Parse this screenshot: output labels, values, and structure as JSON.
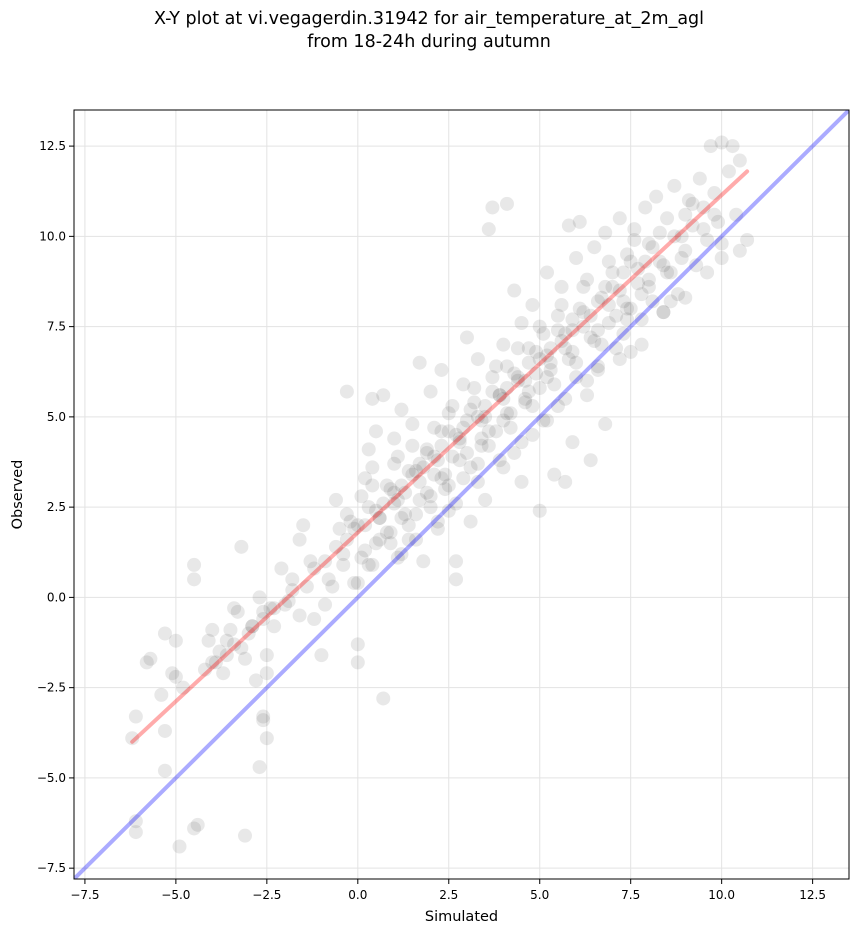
{
  "title_line1": "X-Y plot at vi.vegagerdin.31942 for air_temperature_at_2m_agl",
  "title_line2": "from 18-24h during autumn",
  "chart_data": {
    "type": "scatter",
    "xlabel": "Simulated",
    "ylabel": "Observed",
    "xlim": [
      -7.8,
      13.5
    ],
    "ylim": [
      -7.8,
      13.5
    ],
    "xticks": [
      -7.5,
      -5.0,
      -2.5,
      0.0,
      2.5,
      5.0,
      7.5,
      10.0,
      12.5
    ],
    "yticks": [
      -7.5,
      -5.0,
      -2.5,
      0.0,
      2.5,
      5.0,
      7.5,
      10.0,
      12.5
    ],
    "xtick_labels": [
      "−7.5",
      "−5.0",
      "−2.5",
      "0.0",
      "2.5",
      "5.0",
      "7.5",
      "10.0",
      "12.5"
    ],
    "ytick_labels": [
      "−7.5",
      "−5.0",
      "−2.5",
      "0.0",
      "2.5",
      "5.0",
      "7.5",
      "10.0",
      "12.5"
    ],
    "grid": true,
    "point_color": "#000000",
    "point_alpha": 0.09,
    "identity_line": {
      "x": [
        -7.8,
        13.5
      ],
      "y": [
        -7.8,
        13.5
      ],
      "color": "#0000ff"
    },
    "fit_line": {
      "x": [
        -6.2,
        10.7
      ],
      "y": [
        -4.0,
        11.8
      ],
      "color": "#ff0000"
    },
    "points": [
      [
        -6.1,
        -6.2
      ],
      [
        -6.1,
        -6.5
      ],
      [
        -6.1,
        -3.3
      ],
      [
        -6.2,
        -3.9
      ],
      [
        -5.8,
        -1.8
      ],
      [
        -5.7,
        -1.7
      ],
      [
        -5.4,
        -2.7
      ],
      [
        -5.3,
        -1.0
      ],
      [
        -5.3,
        -3.7
      ],
      [
        -5.3,
        -4.8
      ],
      [
        -5.1,
        -2.1
      ],
      [
        -5.0,
        -2.2
      ],
      [
        -5.0,
        -1.2
      ],
      [
        -4.9,
        -6.9
      ],
      [
        -4.5,
        -6.4
      ],
      [
        -4.4,
        -6.3
      ],
      [
        -4.5,
        0.9
      ],
      [
        -4.5,
        0.5
      ],
      [
        -4.0,
        -0.9
      ],
      [
        -4.1,
        -1.2
      ],
      [
        -3.9,
        -1.8
      ],
      [
        -3.8,
        -1.5
      ],
      [
        -3.7,
        -2.1
      ],
      [
        -3.6,
        -1.2
      ],
      [
        -3.5,
        -0.9
      ],
      [
        -3.4,
        -0.3
      ],
      [
        -3.3,
        -0.4
      ],
      [
        -3.2,
        -1.4
      ],
      [
        -3.1,
        -1.7
      ],
      [
        -3.2,
        1.4
      ],
      [
        -3.1,
        -6.6
      ],
      [
        -2.9,
        -0.8
      ],
      [
        -2.8,
        -2.3
      ],
      [
        -2.7,
        -4.7
      ],
      [
        -2.6,
        -3.3
      ],
      [
        -2.6,
        -3.4
      ],
      [
        -2.5,
        -3.9
      ],
      [
        -2.5,
        -1.6
      ],
      [
        -2.5,
        -2.1
      ],
      [
        -2.6,
        -0.4
      ],
      [
        -2.4,
        -0.3
      ],
      [
        -2.3,
        -0.8
      ],
      [
        -2.7,
        0.0
      ],
      [
        -2.1,
        0.8
      ],
      [
        -1.9,
        -0.1
      ],
      [
        -1.8,
        0.5
      ],
      [
        -1.6,
        1.6
      ],
      [
        -1.5,
        2.0
      ],
      [
        -1.3,
        1.0
      ],
      [
        -1.2,
        -0.6
      ],
      [
        -1.0,
        -1.6
      ],
      [
        -0.9,
        -0.2
      ],
      [
        -0.7,
        0.3
      ],
      [
        -0.5,
        1.9
      ],
      [
        -0.4,
        0.9
      ],
      [
        -0.3,
        2.3
      ],
      [
        -0.3,
        5.7
      ],
      [
        -0.1,
        0.4
      ],
      [
        0.0,
        -1.3
      ],
      [
        0.0,
        -1.8
      ],
      [
        0.0,
        2.0
      ],
      [
        0.1,
        2.8
      ],
      [
        0.2,
        3.3
      ],
      [
        0.3,
        4.1
      ],
      [
        0.4,
        5.5
      ],
      [
        0.4,
        3.6
      ],
      [
        0.5,
        1.5
      ],
      [
        0.5,
        4.6
      ],
      [
        0.6,
        2.2
      ],
      [
        0.7,
        -2.8
      ],
      [
        0.7,
        5.6
      ],
      [
        0.8,
        3.1
      ],
      [
        0.9,
        1.8
      ],
      [
        1.0,
        4.4
      ],
      [
        1.0,
        2.6
      ],
      [
        1.1,
        3.9
      ],
      [
        1.2,
        1.2
      ],
      [
        1.2,
        5.2
      ],
      [
        1.3,
        2.9
      ],
      [
        1.4,
        1.6
      ],
      [
        1.5,
        3.4
      ],
      [
        1.5,
        4.8
      ],
      [
        1.6,
        2.3
      ],
      [
        1.7,
        6.5
      ],
      [
        1.7,
        3.7
      ],
      [
        1.8,
        1.0
      ],
      [
        1.9,
        4.1
      ],
      [
        2.0,
        2.8
      ],
      [
        2.0,
        5.7
      ],
      [
        2.1,
        3.4
      ],
      [
        2.2,
        1.9
      ],
      [
        2.3,
        4.6
      ],
      [
        2.3,
        6.3
      ],
      [
        2.4,
        3.0
      ],
      [
        2.5,
        5.1
      ],
      [
        2.5,
        2.4
      ],
      [
        2.6,
        3.9
      ],
      [
        2.7,
        0.5
      ],
      [
        2.7,
        1.0
      ],
      [
        2.8,
        4.4
      ],
      [
        2.9,
        5.9
      ],
      [
        2.9,
        3.3
      ],
      [
        3.0,
        7.2
      ],
      [
        3.0,
        4.9
      ],
      [
        3.1,
        2.1
      ],
      [
        3.2,
        5.4
      ],
      [
        3.3,
        3.7
      ],
      [
        3.3,
        6.6
      ],
      [
        3.4,
        4.2
      ],
      [
        3.5,
        5.0
      ],
      [
        3.5,
        2.7
      ],
      [
        3.6,
        10.2
      ],
      [
        3.7,
        6.1
      ],
      [
        3.7,
        10.8
      ],
      [
        3.8,
        4.6
      ],
      [
        3.9,
        5.6
      ],
      [
        4.0,
        7.0
      ],
      [
        4.0,
        3.6
      ],
      [
        4.1,
        10.9
      ],
      [
        4.1,
        6.4
      ],
      [
        4.2,
        5.1
      ],
      [
        4.3,
        8.5
      ],
      [
        4.3,
        4.0
      ],
      [
        4.4,
        6.0
      ],
      [
        4.5,
        7.6
      ],
      [
        4.5,
        3.2
      ],
      [
        4.6,
        5.4
      ],
      [
        4.7,
        6.9
      ],
      [
        4.8,
        4.5
      ],
      [
        4.8,
        8.1
      ],
      [
        4.9,
        6.2
      ],
      [
        5.0,
        2.4
      ],
      [
        5.0,
        5.8
      ],
      [
        5.1,
        7.3
      ],
      [
        5.2,
        4.9
      ],
      [
        5.2,
        9.0
      ],
      [
        5.3,
        6.5
      ],
      [
        5.4,
        3.4
      ],
      [
        5.5,
        7.8
      ],
      [
        5.5,
        5.3
      ],
      [
        5.6,
        8.6
      ],
      [
        5.7,
        3.2
      ],
      [
        5.7,
        6.9
      ],
      [
        5.8,
        10.3
      ],
      [
        5.9,
        4.3
      ],
      [
        5.9,
        7.4
      ],
      [
        6.0,
        9.4
      ],
      [
        6.0,
        6.1
      ],
      [
        6.1,
        10.4
      ],
      [
        6.2,
        7.9
      ],
      [
        6.3,
        5.6
      ],
      [
        6.3,
        8.8
      ],
      [
        6.4,
        3.8
      ],
      [
        6.5,
        7.1
      ],
      [
        6.5,
        9.7
      ],
      [
        6.6,
        6.4
      ],
      [
        6.7,
        8.3
      ],
      [
        6.8,
        4.8
      ],
      [
        6.8,
        10.1
      ],
      [
        6.9,
        7.6
      ],
      [
        7.0,
        9.0
      ],
      [
        7.1,
        6.9
      ],
      [
        7.2,
        8.5
      ],
      [
        7.2,
        10.5
      ],
      [
        7.3,
        7.3
      ],
      [
        7.4,
        9.5
      ],
      [
        7.5,
        6.8
      ],
      [
        7.5,
        8.0
      ],
      [
        7.6,
        10.2
      ],
      [
        7.7,
        9.1
      ],
      [
        7.8,
        7.7
      ],
      [
        7.9,
        10.8
      ],
      [
        8.0,
        8.6
      ],
      [
        8.0,
        9.8
      ],
      [
        8.1,
        8.2
      ],
      [
        8.2,
        11.1
      ],
      [
        8.3,
        9.3
      ],
      [
        8.4,
        7.9
      ],
      [
        8.5,
        10.5
      ],
      [
        8.6,
        9.0
      ],
      [
        8.7,
        11.4
      ],
      [
        8.8,
        8.4
      ],
      [
        8.9,
        10.0
      ],
      [
        9.0,
        9.6
      ],
      [
        9.1,
        11.0
      ],
      [
        9.2,
        10.3
      ],
      [
        9.3,
        9.2
      ],
      [
        9.4,
        11.6
      ],
      [
        9.5,
        10.8
      ],
      [
        9.6,
        9.9
      ],
      [
        9.7,
        12.5
      ],
      [
        9.8,
        11.2
      ],
      [
        9.9,
        10.4
      ],
      [
        10.0,
        12.6
      ],
      [
        10.0,
        9.4
      ],
      [
        10.2,
        11.8
      ],
      [
        10.3,
        12.5
      ],
      [
        10.4,
        10.6
      ],
      [
        10.5,
        12.1
      ],
      [
        10.5,
        9.6
      ],
      [
        10.7,
        9.9
      ],
      [
        9.5,
        10.2
      ],
      [
        8.4,
        9.2
      ],
      [
        7.7,
        8.7
      ],
      [
        6.9,
        8.1
      ],
      [
        6.2,
        7.5
      ],
      [
        5.6,
        7.1
      ],
      [
        5.0,
        6.6
      ],
      [
        4.4,
        6.1
      ],
      [
        3.9,
        5.6
      ],
      [
        3.3,
        5.0
      ],
      [
        2.7,
        4.5
      ],
      [
        2.1,
        3.9
      ],
      [
        1.6,
        3.5
      ],
      [
        1.0,
        2.9
      ],
      [
        0.5,
        2.4
      ],
      [
        -0.1,
        1.9
      ],
      [
        -0.6,
        1.4
      ],
      [
        -1.2,
        0.8
      ],
      [
        -1.8,
        0.2
      ],
      [
        -2.3,
        -0.3
      ],
      [
        -2.9,
        -0.8
      ],
      [
        -3.4,
        -1.3
      ],
      [
        -4.0,
        -1.8
      ],
      [
        9.0,
        10.6
      ],
      [
        8.1,
        9.7
      ],
      [
        7.3,
        9.0
      ],
      [
        6.6,
        8.2
      ],
      [
        5.9,
        7.7
      ],
      [
        5.3,
        6.9
      ],
      [
        4.7,
        6.5
      ],
      [
        4.1,
        5.8
      ],
      [
        3.5,
        5.3
      ],
      [
        2.9,
        4.7
      ],
      [
        2.3,
        4.2
      ],
      [
        1.8,
        3.6
      ],
      [
        1.2,
        3.1
      ],
      [
        0.7,
        2.6
      ],
      [
        0.2,
        2.0
      ],
      [
        -0.3,
        1.6
      ],
      [
        8.7,
        10.0
      ],
      [
        7.9,
        9.3
      ],
      [
        7.0,
        8.6
      ],
      [
        6.4,
        7.8
      ],
      [
        5.7,
        7.3
      ],
      [
        5.2,
        6.7
      ],
      [
        4.6,
        6.0
      ],
      [
        4.0,
        5.5
      ],
      [
        3.4,
        4.9
      ],
      [
        2.8,
        4.3
      ],
      [
        2.2,
        3.8
      ],
      [
        1.7,
        3.2
      ],
      [
        1.1,
        2.7
      ],
      [
        0.6,
        2.2
      ],
      [
        9.2,
        10.9
      ],
      [
        8.3,
        10.1
      ],
      [
        7.5,
        9.3
      ],
      [
        6.8,
        8.6
      ],
      [
        6.1,
        8.0
      ],
      [
        5.5,
        7.4
      ],
      [
        4.9,
        6.8
      ],
      [
        4.3,
        6.2
      ],
      [
        3.7,
        5.7
      ],
      [
        3.1,
        5.2
      ],
      [
        2.5,
        4.6
      ],
      [
        1.9,
        4.0
      ],
      [
        1.4,
        3.5
      ],
      [
        0.9,
        3.0
      ],
      [
        0.3,
        2.5
      ],
      [
        -0.2,
        2.1
      ],
      [
        8.9,
        9.4
      ],
      [
        8.0,
        8.8
      ],
      [
        7.3,
        8.2
      ],
      [
        6.6,
        7.4
      ],
      [
        5.9,
        6.8
      ],
      [
        5.3,
        6.3
      ],
      [
        4.7,
        5.7
      ],
      [
        4.1,
        5.1
      ],
      [
        3.6,
        4.6
      ],
      [
        3.0,
        4.0
      ],
      [
        2.4,
        3.4
      ],
      [
        1.9,
        2.9
      ],
      [
        1.3,
        2.3
      ],
      [
        0.8,
        1.8
      ],
      [
        0.2,
        1.3
      ],
      [
        7.6,
        9.9
      ],
      [
        6.9,
        9.3
      ],
      [
        6.2,
        8.6
      ],
      [
        5.6,
        8.1
      ],
      [
        5.0,
        7.5
      ],
      [
        4.4,
        6.9
      ],
      [
        3.8,
        6.4
      ],
      [
        3.2,
        5.8
      ],
      [
        2.6,
        5.3
      ],
      [
        2.1,
        4.7
      ],
      [
        1.5,
        4.2
      ],
      [
        1.0,
        3.7
      ],
      [
        0.4,
        3.1
      ],
      [
        8.5,
        9.0
      ],
      [
        7.8,
        8.4
      ],
      [
        7.1,
        7.8
      ],
      [
        6.4,
        7.2
      ],
      [
        5.8,
        6.6
      ],
      [
        5.2,
        6.1
      ],
      [
        4.6,
        5.5
      ],
      [
        4.0,
        4.9
      ],
      [
        3.4,
        4.4
      ],
      [
        2.8,
        3.8
      ],
      [
        2.3,
        3.3
      ],
      [
        1.7,
        2.7
      ],
      [
        1.2,
        2.2
      ],
      [
        0.6,
        1.6
      ],
      [
        0.1,
        1.1
      ],
      [
        7.4,
        8.0
      ],
      [
        6.7,
        7.0
      ],
      [
        6.0,
        6.5
      ],
      [
        5.4,
        5.9
      ],
      [
        4.8,
        5.3
      ],
      [
        4.2,
        4.7
      ],
      [
        3.6,
        4.2
      ],
      [
        3.1,
        3.6
      ],
      [
        2.5,
        3.1
      ],
      [
        2.0,
        2.5
      ],
      [
        1.4,
        2.0
      ],
      [
        0.9,
        1.5
      ],
      [
        0.3,
        0.9
      ],
      [
        6.3,
        6.0
      ],
      [
        5.7,
        5.5
      ],
      [
        5.1,
        4.9
      ],
      [
        4.5,
        4.3
      ],
      [
        3.9,
        3.8
      ],
      [
        3.3,
        3.2
      ],
      [
        2.7,
        2.6
      ],
      [
        2.2,
        2.1
      ],
      [
        1.6,
        1.6
      ],
      [
        1.1,
        1.1
      ],
      [
        -1.6,
        -0.5
      ],
      [
        -2.0,
        -0.2
      ],
      [
        -2.6,
        -0.6
      ],
      [
        -3.0,
        -1.0
      ],
      [
        -3.6,
        -1.6
      ],
      [
        -4.2,
        -2.0
      ],
      [
        -4.8,
        -2.5
      ],
      [
        -1.4,
        0.3
      ],
      [
        -0.8,
        0.5
      ],
      [
        -0.4,
        1.2
      ],
      [
        0.0,
        0.4
      ],
      [
        0.4,
        0.9
      ],
      [
        -0.9,
        1.0
      ],
      [
        -0.6,
        2.7
      ],
      [
        6.6,
        6.3
      ],
      [
        7.2,
        6.6
      ],
      [
        7.8,
        7.0
      ],
      [
        8.4,
        7.9
      ],
      [
        9.0,
        8.3
      ],
      [
        9.6,
        9.0
      ],
      [
        10.0,
        9.8
      ],
      [
        8.6,
        8.2
      ],
      [
        7.4,
        7.7
      ],
      [
        9.8,
        10.6
      ]
    ]
  }
}
